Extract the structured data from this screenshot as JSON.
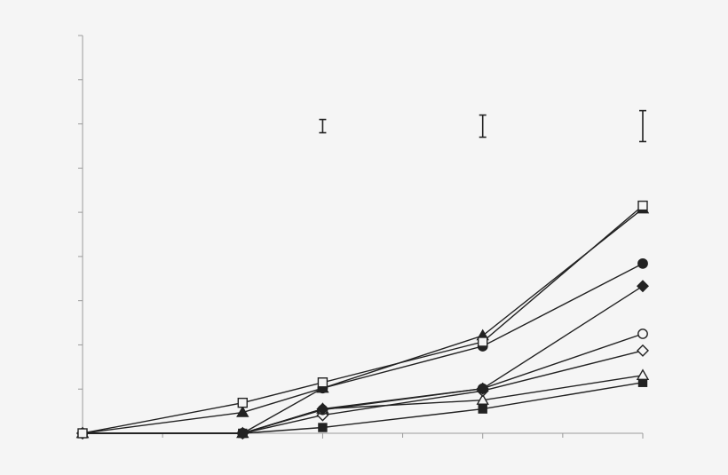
{
  "chart_data": {
    "type": "line",
    "title": "",
    "xlabel": "",
    "ylabel": "",
    "xlim": [
      0,
      7
    ],
    "ylim": [
      0,
      9
    ],
    "x_major_ticks": [
      0,
      2,
      3,
      5,
      7
    ],
    "x_minor_ticks": [
      1,
      4,
      6
    ],
    "grid": false,
    "legend": "none",
    "series": [
      {
        "marker": "open-square",
        "x": [
          0,
          2,
          3,
          5,
          7
        ],
        "y": [
          0.0,
          0.69,
          1.15,
          2.07,
          5.15
        ]
      },
      {
        "marker": "filled-triangle",
        "x": [
          0,
          2,
          3,
          5,
          7
        ],
        "y": [
          0.0,
          0.47,
          1.02,
          2.21,
          5.08
        ]
      },
      {
        "marker": "filled-circle",
        "x": [
          0,
          2,
          3,
          5,
          7
        ],
        "y": [
          0.0,
          0.0,
          1.02,
          1.97,
          3.84
        ]
      },
      {
        "marker": "filled-diamond",
        "x": [
          0,
          2,
          3,
          5,
          7
        ],
        "y": [
          0.0,
          0.0,
          0.55,
          1.01,
          3.33
        ]
      },
      {
        "marker": "open-circle",
        "x": [
          0,
          2,
          3,
          5,
          7
        ],
        "y": [
          0.0,
          0.0,
          0.53,
          1.01,
          2.25
        ]
      },
      {
        "marker": "open-diamond",
        "x": [
          0,
          2,
          3,
          5,
          7
        ],
        "y": [
          0.0,
          0.0,
          0.41,
          0.96,
          1.87
        ]
      },
      {
        "marker": "open-triangle",
        "x": [
          0,
          2,
          3,
          5,
          7
        ],
        "y": [
          0.0,
          0.0,
          0.55,
          0.75,
          1.31
        ]
      },
      {
        "marker": "filled-square",
        "x": [
          0,
          2,
          3,
          5,
          7
        ],
        "y": [
          0.0,
          0.0,
          0.13,
          0.55,
          1.15
        ]
      }
    ],
    "error_bars": [
      {
        "x": 3,
        "low": 6.8,
        "high": 7.1
      },
      {
        "x": 5,
        "low": 6.7,
        "high": 7.2
      },
      {
        "x": 7,
        "low": 6.6,
        "high": 7.3
      }
    ],
    "colors": {
      "ink": "#222222",
      "axis": "#9a9a9a",
      "background": "#f5f5f5"
    }
  }
}
